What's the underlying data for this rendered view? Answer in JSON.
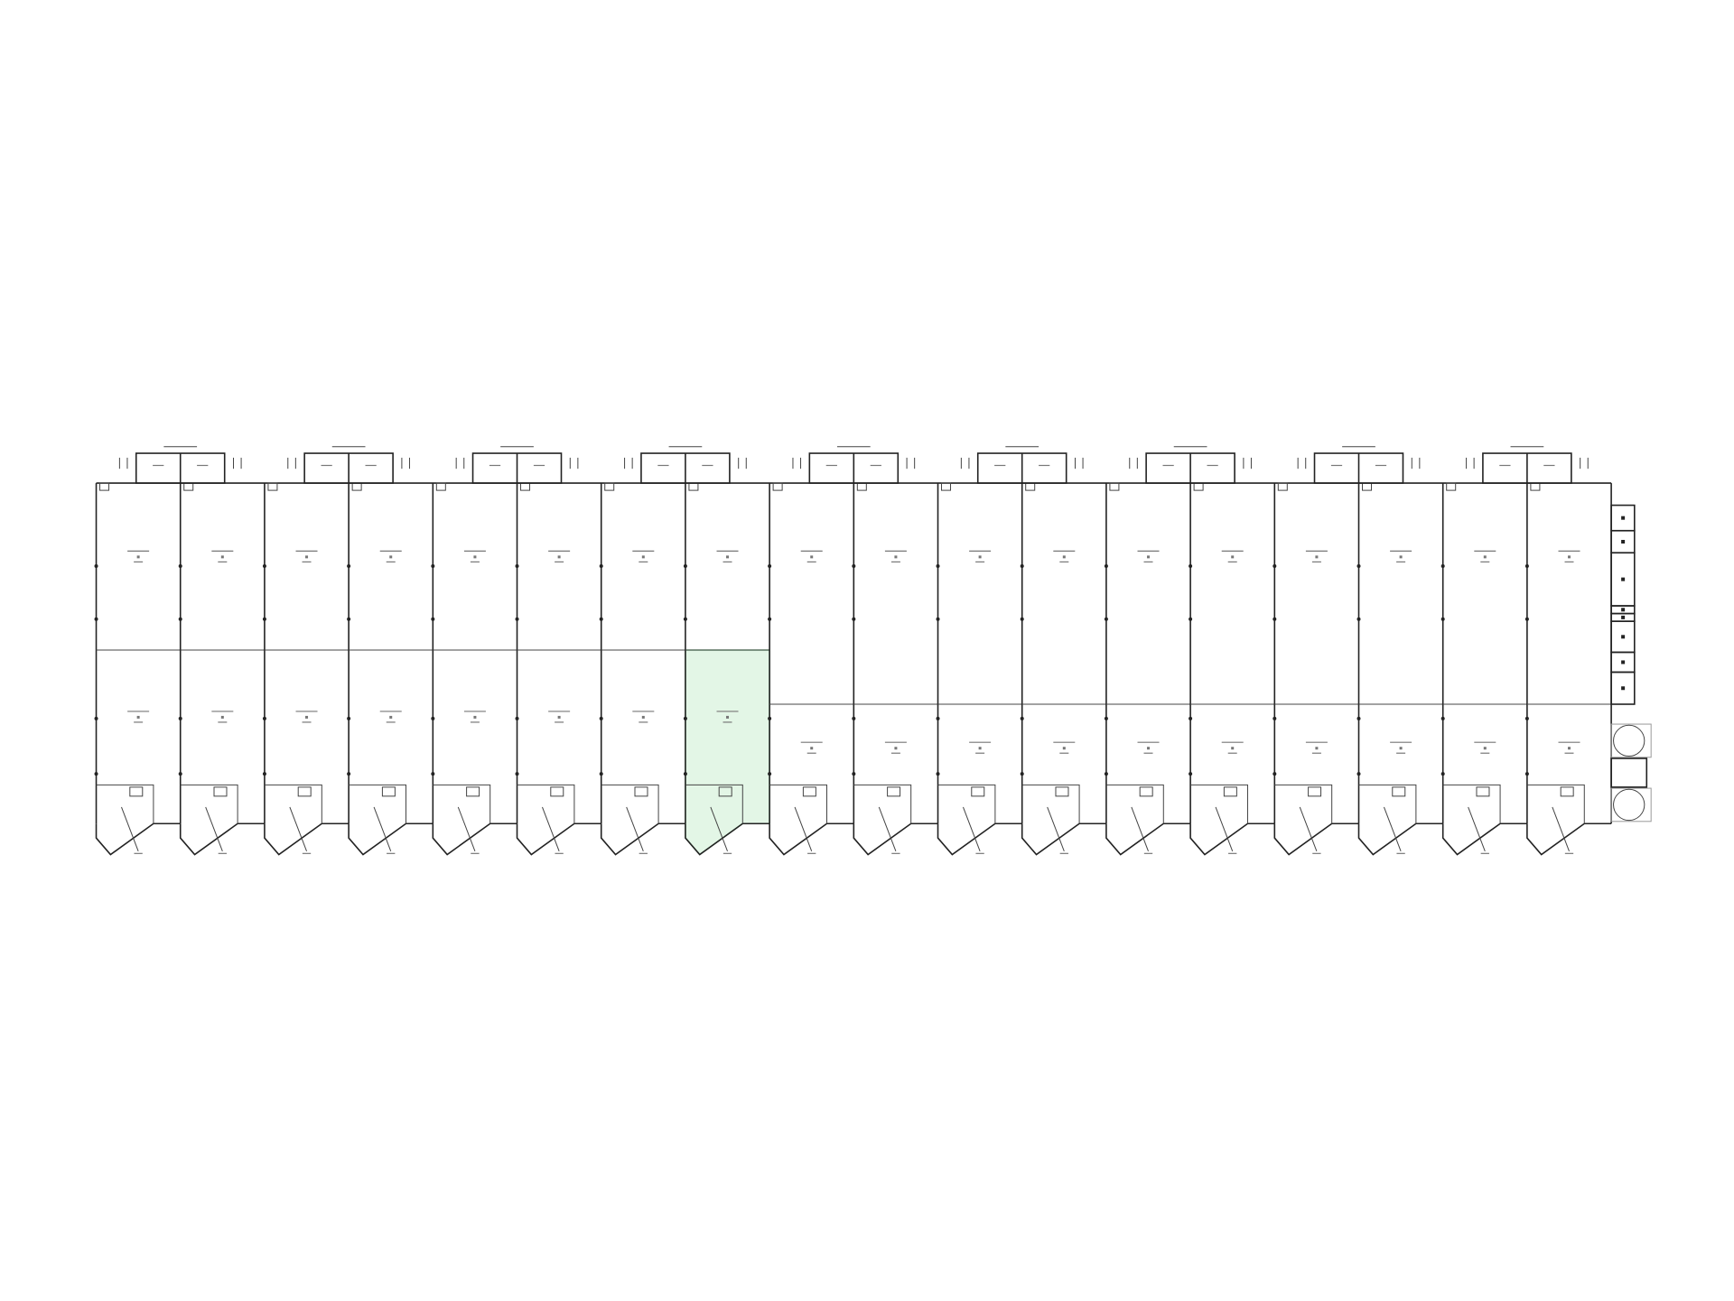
{
  "plan": {
    "unit_columns": 18,
    "annex_count": 9,
    "highlighted_unit": {
      "column": 8,
      "row": "front"
    },
    "colors": {
      "wall": "#222222",
      "highlight_fill": "#e3f6e6",
      "highlight_stroke": "#7fc98f",
      "background": "#ffffff"
    }
  }
}
